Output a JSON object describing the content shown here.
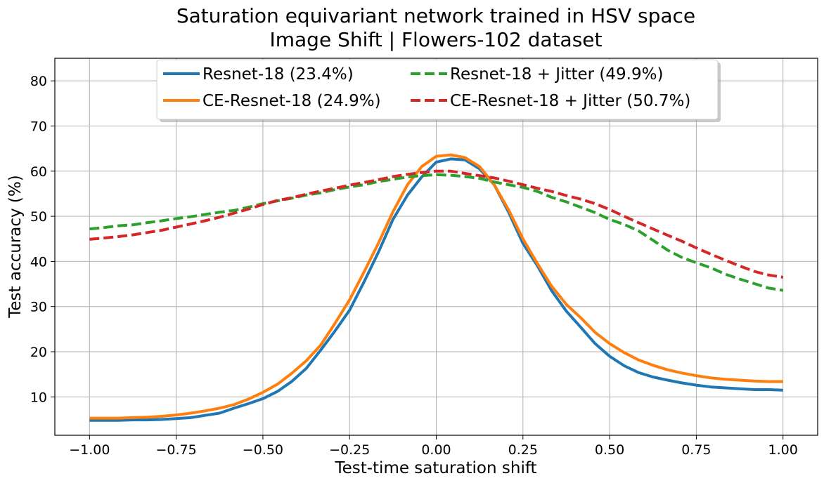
{
  "chart_data": {
    "type": "line",
    "title": "Saturation equivariant network trained in HSV space",
    "subtitle": "Image Shift | Flowers-102 dataset",
    "xlabel": "Test-time saturation shift",
    "ylabel": "Test accuracy (%)",
    "xlim": [
      -1.1,
      1.1
    ],
    "ylim": [
      1.5,
      85
    ],
    "xticks": [
      -1.0,
      -0.75,
      -0.5,
      -0.25,
      0.0,
      0.25,
      0.5,
      0.75,
      1.0
    ],
    "xtick_labels": [
      "−1.00",
      "−0.75",
      "−0.50",
      "−0.25",
      "0.00",
      "0.25",
      "0.50",
      "0.75",
      "1.00"
    ],
    "yticks": [
      10,
      20,
      30,
      40,
      50,
      60,
      70,
      80
    ],
    "ytick_labels": [
      "10",
      "20",
      "30",
      "40",
      "50",
      "60",
      "70",
      "80"
    ],
    "grid": true,
    "legend_position": "upper-center",
    "x": [
      -1.0,
      -0.958,
      -0.917,
      -0.875,
      -0.833,
      -0.792,
      -0.75,
      -0.708,
      -0.667,
      -0.625,
      -0.583,
      -0.542,
      -0.5,
      -0.458,
      -0.417,
      -0.375,
      -0.333,
      -0.292,
      -0.25,
      -0.208,
      -0.167,
      -0.125,
      -0.083,
      -0.042,
      0.0,
      0.042,
      0.083,
      0.125,
      0.167,
      0.208,
      0.25,
      0.292,
      0.333,
      0.375,
      0.417,
      0.458,
      0.5,
      0.542,
      0.583,
      0.625,
      0.667,
      0.708,
      0.75,
      0.792,
      0.833,
      0.875,
      0.917,
      0.958,
      1.0
    ],
    "series": [
      {
        "name": "Resnet-18 (23.4%)",
        "color": "#1f77b4",
        "dash": "solid",
        "values": [
          4.8,
          4.8,
          4.8,
          4.9,
          4.9,
          5.0,
          5.2,
          5.4,
          5.9,
          6.4,
          7.5,
          8.5,
          9.6,
          11.2,
          13.4,
          16.3,
          20.4,
          24.6,
          29.2,
          35.5,
          42.0,
          49.3,
          54.7,
          58.7,
          62.0,
          62.7,
          62.5,
          60.5,
          57.0,
          51.0,
          44.0,
          39.0,
          33.5,
          29.0,
          25.4,
          21.8,
          19.0,
          16.9,
          15.4,
          14.4,
          13.7,
          13.1,
          12.6,
          12.2,
          12.0,
          11.8,
          11.6,
          11.6,
          11.5
        ]
      },
      {
        "name": "CE-Resnet-18 (24.9%)",
        "color": "#ff7f0e",
        "dash": "solid",
        "values": [
          5.3,
          5.3,
          5.3,
          5.4,
          5.5,
          5.7,
          6.0,
          6.4,
          6.9,
          7.5,
          8.3,
          9.5,
          11.0,
          12.8,
          15.2,
          18.0,
          21.5,
          26.3,
          31.5,
          37.7,
          44.0,
          51.0,
          57.0,
          61.0,
          63.3,
          63.6,
          63.0,
          61.0,
          57.0,
          51.5,
          45.0,
          39.5,
          34.5,
          30.5,
          27.5,
          24.3,
          21.8,
          19.8,
          18.2,
          17.0,
          16.0,
          15.3,
          14.7,
          14.2,
          13.9,
          13.7,
          13.5,
          13.4,
          13.4
        ]
      },
      {
        "name": "Resnet-18 + Jitter (49.9%)",
        "color": "#2ca02c",
        "dash": "dashed",
        "values": [
          47.2,
          47.5,
          47.9,
          48.1,
          48.6,
          49.0,
          49.5,
          49.9,
          50.4,
          50.9,
          51.3,
          52.0,
          52.8,
          53.4,
          54.0,
          54.7,
          55.2,
          55.9,
          56.5,
          57.0,
          57.7,
          58.2,
          58.7,
          59.0,
          59.2,
          59.1,
          58.8,
          58.4,
          57.6,
          57.0,
          56.4,
          55.5,
          54.2,
          53.2,
          52.0,
          50.8,
          49.3,
          48.2,
          46.8,
          44.7,
          42.5,
          40.9,
          39.7,
          38.6,
          37.2,
          36.1,
          35.1,
          34.1,
          33.6
        ]
      },
      {
        "name": "CE-Resnet-18 + Jitter (50.7%)",
        "color": "#d62728",
        "dash": "dashed",
        "values": [
          44.9,
          45.2,
          45.5,
          45.9,
          46.4,
          46.9,
          47.6,
          48.3,
          49.0,
          49.8,
          50.7,
          51.6,
          52.6,
          53.5,
          54.1,
          54.9,
          55.6,
          56.2,
          56.9,
          57.5,
          58.1,
          58.8,
          59.3,
          59.7,
          60.0,
          60.0,
          59.5,
          59.0,
          58.5,
          57.8,
          57.0,
          56.2,
          55.5,
          54.6,
          53.8,
          52.8,
          51.5,
          50.0,
          48.6,
          47.2,
          45.8,
          44.5,
          43.0,
          41.6,
          40.3,
          39.0,
          37.8,
          37.0,
          36.5
        ]
      }
    ]
  }
}
